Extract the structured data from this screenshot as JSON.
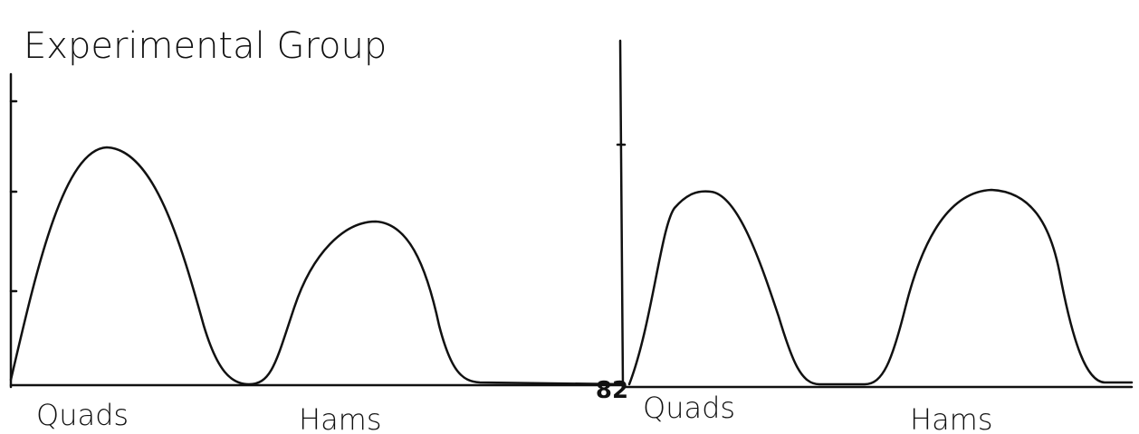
{
  "title": "Experimental Group",
  "panels": [
    {
      "labels": [
        "Quads",
        "Hams"
      ]
    },
    {
      "origin_label": "82",
      "labels": [
        "Quads",
        "Hams"
      ]
    }
  ]
}
